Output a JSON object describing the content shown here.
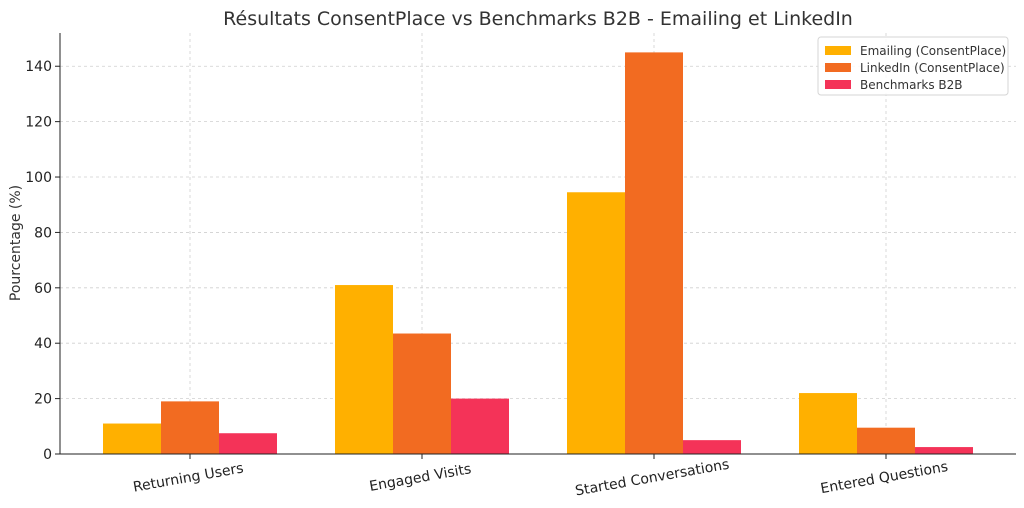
{
  "chart_data": {
    "type": "bar",
    "title": "Résultats ConsentPlace vs Benchmarks B2B - Emailing et LinkedIn",
    "xlabel": "",
    "ylabel": "Pourcentage (%)",
    "categories": [
      "Returning Users",
      "Engaged Visits",
      "Started Conversations",
      "Entered Questions"
    ],
    "series": [
      {
        "name": "Emailing (ConsentPlace)",
        "color": "#FFB000",
        "values": [
          11,
          61,
          94.5,
          22
        ]
      },
      {
        "name": "LinkedIn (ConsentPlace)",
        "color": "#F26B21",
        "values": [
          19,
          43.5,
          145,
          9.5
        ]
      },
      {
        "name": "Benchmarks B2B",
        "color": "#F43358",
        "values": [
          7.5,
          20,
          5,
          2.5
        ]
      }
    ],
    "ylim": [
      0,
      152
    ],
    "yticks": [
      0,
      20,
      40,
      60,
      80,
      100,
      120,
      140
    ],
    "xtick_rotation_deg": -10,
    "grid": true,
    "legend_position": "top-right"
  }
}
